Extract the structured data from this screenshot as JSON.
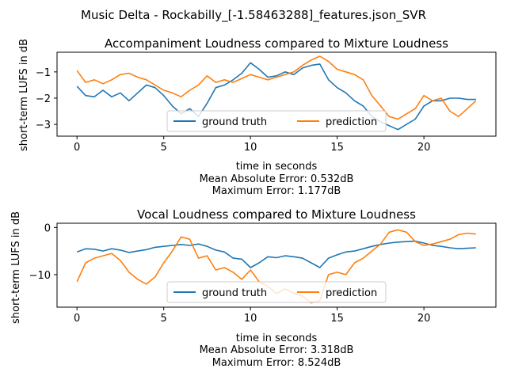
{
  "figure_title": "Music Delta - Rockabilly_[-1.58463288]_features.json_SVR",
  "colors": {
    "ground_truth": "#1f77b4",
    "prediction": "#ff7f0e"
  },
  "chart_data": [
    {
      "type": "line",
      "title": "Accompaniment Loudness compared to Mixture Loudness",
      "xlabel": "time in seconds",
      "ylabel": "short-term LUFS in dB",
      "xlim": [
        -1.15,
        24.15
      ],
      "ylim": [
        -3.45,
        -0.25
      ],
      "xticks": [
        0,
        5,
        10,
        15,
        20
      ],
      "yticks": [
        -3,
        -2,
        -1
      ],
      "legend": {
        "placement": "lower-center",
        "ncol": 2
      },
      "metrics": [
        "Mean Absolute Error: 0.532dB",
        "Maximum Error: 1.177dB"
      ],
      "series": [
        {
          "name": "ground truth",
          "color": "#1f77b4",
          "x": [
            0,
            0.5,
            1,
            1.5,
            2,
            2.5,
            3,
            3.5,
            4,
            4.5,
            5,
            5.5,
            6,
            6.5,
            7,
            7.5,
            8,
            8.5,
            9,
            9.5,
            10,
            10.5,
            11,
            11.5,
            12,
            12.5,
            13,
            13.5,
            14,
            14.5,
            15,
            15.5,
            16,
            16.5,
            17,
            17.5,
            18,
            18.5,
            19,
            19.5,
            20,
            20.5,
            21,
            21.5,
            22,
            22.5,
            23
          ],
          "y": [
            -1.55,
            -1.9,
            -1.95,
            -1.7,
            -1.95,
            -1.8,
            -2.1,
            -1.8,
            -1.5,
            -1.6,
            -1.9,
            -2.3,
            -2.6,
            -2.4,
            -2.7,
            -2.2,
            -1.6,
            -1.5,
            -1.3,
            -1.05,
            -0.65,
            -0.9,
            -1.2,
            -1.15,
            -1.0,
            -1.1,
            -0.85,
            -0.75,
            -0.7,
            -1.3,
            -1.6,
            -1.8,
            -2.1,
            -2.3,
            -2.7,
            -2.9,
            -3.05,
            -3.2,
            -3.0,
            -2.8,
            -2.3,
            -2.1,
            -2.1,
            -2.0,
            -2.0,
            -2.05,
            -2.05
          ]
        },
        {
          "name": "prediction",
          "color": "#ff7f0e",
          "x": [
            0,
            0.5,
            1,
            1.5,
            2,
            2.5,
            3,
            3.5,
            4,
            4.5,
            5,
            5.5,
            6,
            6.5,
            7,
            7.5,
            8,
            8.5,
            9,
            9.5,
            10,
            10.5,
            11,
            11.5,
            12,
            12.5,
            13,
            13.5,
            14,
            14.5,
            15,
            15.5,
            16,
            16.5,
            17,
            17.5,
            18,
            18.5,
            19,
            19.5,
            20,
            20.5,
            21,
            21.5,
            22,
            22.5,
            23
          ],
          "y": [
            -0.95,
            -1.4,
            -1.3,
            -1.45,
            -1.3,
            -1.1,
            -1.05,
            -1.2,
            -1.3,
            -1.5,
            -1.7,
            -1.8,
            -1.95,
            -1.7,
            -1.5,
            -1.15,
            -1.4,
            -1.3,
            -1.4,
            -1.25,
            -1.1,
            -1.2,
            -1.3,
            -1.2,
            -1.1,
            -1.0,
            -0.75,
            -0.55,
            -0.4,
            -0.6,
            -0.9,
            -1.0,
            -1.1,
            -1.3,
            -1.9,
            -2.3,
            -2.7,
            -2.8,
            -2.6,
            -2.4,
            -1.9,
            -2.1,
            -2.0,
            -2.5,
            -2.7,
            -2.4,
            -2.1
          ]
        }
      ]
    },
    {
      "type": "line",
      "title": "Vocal Loudness compared to Mixture Loudness",
      "xlabel": "time in seconds",
      "ylabel": "short-term LUFS in dB",
      "xlim": [
        -1.15,
        24.15
      ],
      "ylim": [
        -16.9,
        0.9
      ],
      "xticks": [
        0,
        5,
        10,
        15,
        20
      ],
      "yticks": [
        -10,
        0
      ],
      "legend": {
        "placement": "lower-center",
        "ncol": 2
      },
      "metrics": [
        "Mean Absolute Error: 3.318dB",
        "Maximum Error: 8.524dB"
      ],
      "series": [
        {
          "name": "ground truth",
          "color": "#1f77b4",
          "x": [
            0,
            0.5,
            1,
            1.5,
            2,
            2.5,
            3,
            3.5,
            4,
            4.5,
            5,
            5.5,
            6,
            6.5,
            7,
            7.5,
            8,
            8.5,
            9,
            9.5,
            10,
            10.5,
            11,
            11.5,
            12,
            12.5,
            13,
            13.5,
            14,
            14.5,
            15,
            15.5,
            16,
            16.5,
            17,
            17.5,
            18,
            18.5,
            19,
            19.5,
            20,
            20.5,
            21,
            21.5,
            22,
            22.5,
            23
          ],
          "y": [
            -5.2,
            -4.5,
            -4.6,
            -5.0,
            -4.5,
            -4.8,
            -5.3,
            -5.0,
            -4.7,
            -4.2,
            -4.0,
            -3.8,
            -3.6,
            -3.8,
            -3.5,
            -4.0,
            -4.8,
            -5.2,
            -6.5,
            -6.7,
            -8.5,
            -7.5,
            -6.2,
            -6.4,
            -6.0,
            -6.2,
            -6.5,
            -7.5,
            -8.5,
            -6.5,
            -5.8,
            -5.2,
            -5.0,
            -4.5,
            -4.0,
            -3.6,
            -3.3,
            -3.1,
            -3.0,
            -2.9,
            -3.3,
            -3.8,
            -4.0,
            -4.3,
            -4.5,
            -4.4,
            -4.3
          ]
        },
        {
          "name": "prediction",
          "color": "#ff7f0e",
          "x": [
            0,
            0.5,
            1,
            1.5,
            2,
            2.5,
            3,
            3.5,
            4,
            4.5,
            5,
            5.5,
            6,
            6.5,
            7,
            7.5,
            8,
            8.5,
            9,
            9.5,
            10,
            10.5,
            11,
            11.5,
            12,
            12.5,
            13,
            13.5,
            14,
            14.5,
            15,
            15.5,
            16,
            16.5,
            17,
            17.5,
            18,
            18.5,
            19,
            19.5,
            20,
            20.5,
            21,
            21.5,
            22,
            22.5,
            23
          ],
          "y": [
            -11.5,
            -7.5,
            -6.5,
            -6.0,
            -5.5,
            -7.0,
            -9.5,
            -11.0,
            -12.0,
            -10.5,
            -7.5,
            -5.0,
            -2.0,
            -2.5,
            -6.5,
            -6.0,
            -9.0,
            -8.5,
            -9.5,
            -11.0,
            -9.0,
            -11.5,
            -12.5,
            -14.0,
            -13.0,
            -14.0,
            -14.5,
            -16.0,
            -15.5,
            -10.0,
            -9.5,
            -10.0,
            -7.5,
            -6.5,
            -5.0,
            -3.5,
            -1.0,
            -0.5,
            -1.0,
            -3.0,
            -3.8,
            -3.5,
            -3.0,
            -2.5,
            -1.5,
            -1.2,
            -1.4
          ]
        }
      ]
    }
  ]
}
